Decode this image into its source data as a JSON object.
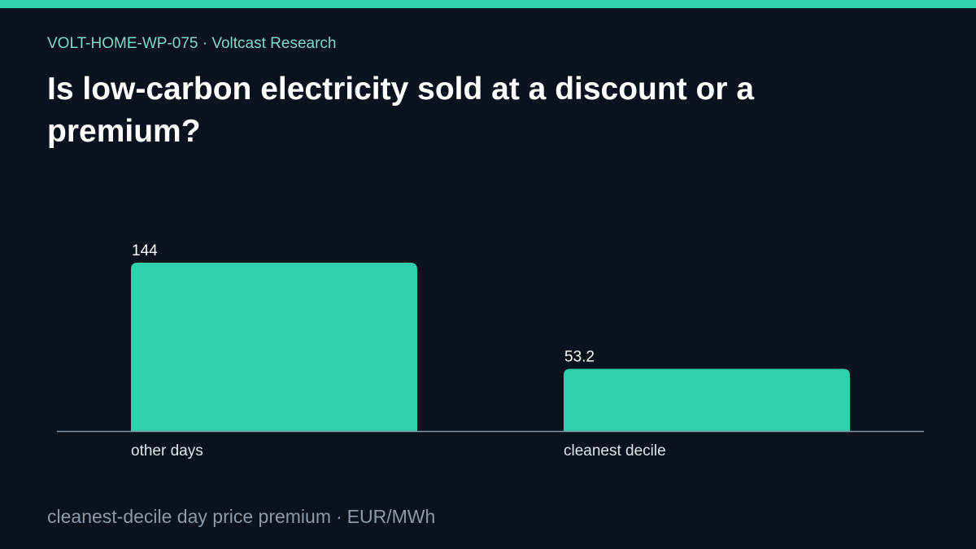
{
  "header": {
    "code": "VOLT-HOME-WP-075",
    "separator": "·",
    "source": "Voltcast Research"
  },
  "footer": {
    "metric": "cleanest-decile day price premium",
    "separator": "·",
    "unit": "EUR/MWh"
  },
  "colors": {
    "accent": "#30d0ac",
    "kicker": "#7fd8c4",
    "background": "#0a121e",
    "axis": "#8294a8",
    "muted": "#8b99a8",
    "text": "#ffffff"
  },
  "chart_data": {
    "type": "bar",
    "title": "Is low-carbon electricity sold at a discount or a premium?",
    "categories": [
      "other days",
      "cleanest decile"
    ],
    "values": [
      144,
      53.2
    ],
    "value_labels": [
      "144",
      "53.2"
    ],
    "ylim": [
      0,
      160
    ],
    "grid": false,
    "legend": "none"
  }
}
